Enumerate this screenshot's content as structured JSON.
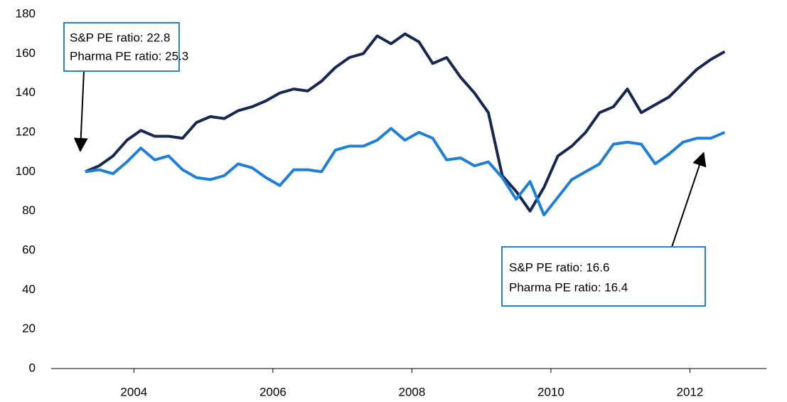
{
  "chart_data": {
    "type": "line",
    "x": [
      2003.3,
      2003.5,
      2003.7,
      2003.9,
      2004.1,
      2004.3,
      2004.5,
      2004.7,
      2004.9,
      2005.1,
      2005.3,
      2005.5,
      2005.7,
      2005.9,
      2006.1,
      2006.3,
      2006.5,
      2006.7,
      2006.9,
      2007.1,
      2007.3,
      2007.5,
      2007.7,
      2007.9,
      2008.1,
      2008.3,
      2008.5,
      2008.7,
      2008.9,
      2009.1,
      2009.3,
      2009.5,
      2009.7,
      2009.9,
      2010.1,
      2010.3,
      2010.5,
      2010.7,
      2010.9,
      2011.1,
      2011.3,
      2011.5,
      2011.7,
      2011.9,
      2012.1,
      2012.3,
      2012.5
    ],
    "series": [
      {
        "color": "#17284f",
        "values": [
          100,
          103,
          108,
          116,
          121,
          118,
          118,
          117,
          125,
          128,
          127,
          131,
          133,
          136,
          140,
          142,
          141,
          146,
          153,
          158,
          160,
          169,
          165,
          170,
          166,
          155,
          158,
          148,
          140,
          130,
          98,
          90,
          80,
          92,
          108,
          113,
          120,
          130,
          133,
          142,
          130,
          134,
          138,
          145,
          152,
          157,
          161
        ]
      },
      {
        "color": "#1f7ed6",
        "values": [
          100,
          101,
          99,
          105,
          112,
          106,
          108,
          101,
          97,
          96,
          98,
          104,
          102,
          97,
          93,
          101,
          101,
          100,
          111,
          113,
          113,
          116,
          122,
          116,
          120,
          117,
          106,
          107,
          103,
          105,
          97,
          86,
          95,
          78,
          87,
          96,
          100,
          104,
          114,
          115,
          114,
          104,
          109,
          115,
          117,
          117,
          120
        ]
      }
    ],
    "xlim": [
      2002.81,
      2013.1
    ],
    "xticks": [
      2004,
      2006,
      2008,
      2010,
      2012
    ],
    "ylim": [
      0,
      180
    ],
    "yticks": [
      0,
      20,
      40,
      60,
      80,
      100,
      120,
      140,
      160,
      180
    ],
    "annotations": [
      {
        "lines": [
          "S&P PE ratio: 22.8",
          "Pharma PE ratio: 25.3"
        ]
      },
      {
        "lines": [
          "S&P PE ratio: 16.6",
          "Pharma PE ratio: 16.4"
        ]
      }
    ]
  }
}
